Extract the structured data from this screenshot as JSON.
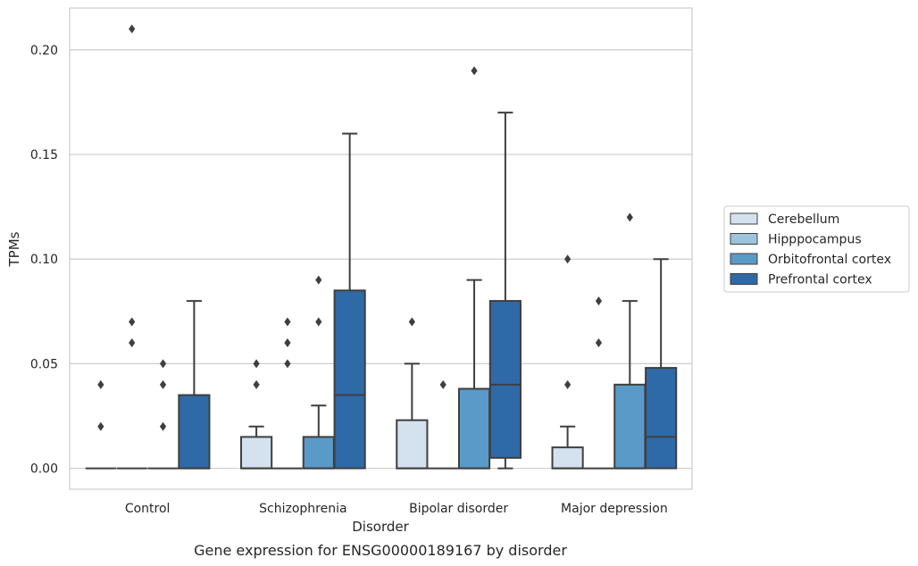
{
  "chart_data": {
    "type": "boxplot",
    "title": "",
    "caption": "Gene expression for ENSG00000189167 by disorder",
    "xlabel": "Disorder",
    "ylabel": "TPMs",
    "ylim": [
      -0.01,
      0.22
    ],
    "yticks": [
      0.0,
      0.05,
      0.1,
      0.15,
      0.2
    ],
    "ytick_labels": [
      "0.00",
      "0.05",
      "0.10",
      "0.15",
      "0.20"
    ],
    "grid": "horizontal",
    "legend_position": "center-right",
    "categories": [
      "Control",
      "Schizophrenia",
      "Bipolar disorder",
      "Major depression"
    ],
    "series": [
      {
        "name": "Cerebellum",
        "color": "#d4e2f0",
        "boxes": [
          {
            "q1": 0.0,
            "median": 0.0,
            "q3": 0.0,
            "whislo": 0.0,
            "whishi": 0.0,
            "fliers": [
              0.02,
              0.04
            ]
          },
          {
            "q1": 0.0,
            "median": 0.0,
            "q3": 0.015,
            "whislo": 0.0,
            "whishi": 0.02,
            "fliers": [
              0.04,
              0.05
            ]
          },
          {
            "q1": 0.0,
            "median": 0.0,
            "q3": 0.023,
            "whislo": 0.0,
            "whishi": 0.05,
            "fliers": [
              0.07
            ]
          },
          {
            "q1": 0.0,
            "median": 0.0,
            "q3": 0.01,
            "whislo": 0.0,
            "whishi": 0.02,
            "fliers": [
              0.04,
              0.1
            ]
          }
        ]
      },
      {
        "name": "Hipppocampus",
        "color": "#9dc4dd",
        "boxes": [
          {
            "q1": 0.0,
            "median": 0.0,
            "q3": 0.0,
            "whislo": 0.0,
            "whishi": 0.0,
            "fliers": [
              0.06,
              0.07,
              0.21
            ]
          },
          {
            "q1": 0.0,
            "median": 0.0,
            "q3": 0.0,
            "whislo": 0.0,
            "whishi": 0.0,
            "fliers": [
              0.05,
              0.06,
              0.07
            ]
          },
          {
            "q1": 0.0,
            "median": 0.0,
            "q3": 0.0,
            "whislo": 0.0,
            "whishi": 0.0,
            "fliers": [
              0.04
            ]
          },
          {
            "q1": 0.0,
            "median": 0.0,
            "q3": 0.0,
            "whislo": 0.0,
            "whishi": 0.0,
            "fliers": [
              0.06,
              0.08
            ]
          }
        ]
      },
      {
        "name": "Orbitofrontal cortex",
        "color": "#5a9ac8",
        "boxes": [
          {
            "q1": 0.0,
            "median": 0.0,
            "q3": 0.0,
            "whislo": 0.0,
            "whishi": 0.0,
            "fliers": [
              0.02,
              0.04,
              0.05
            ]
          },
          {
            "q1": 0.0,
            "median": 0.0,
            "q3": 0.015,
            "whislo": 0.0,
            "whishi": 0.03,
            "fliers": [
              0.07,
              0.09
            ]
          },
          {
            "q1": 0.0,
            "median": 0.0,
            "q3": 0.038,
            "whislo": 0.0,
            "whishi": 0.09,
            "fliers": [
              0.19
            ]
          },
          {
            "q1": 0.0,
            "median": 0.0,
            "q3": 0.04,
            "whislo": 0.0,
            "whishi": 0.08,
            "fliers": [
              0.12
            ]
          }
        ]
      },
      {
        "name": "Prefrontal cortex",
        "color": "#2e6aa8",
        "boxes": [
          {
            "q1": 0.0,
            "median": 0.0,
            "q3": 0.035,
            "whislo": 0.0,
            "whishi": 0.08,
            "fliers": []
          },
          {
            "q1": 0.0,
            "median": 0.035,
            "q3": 0.085,
            "whislo": 0.0,
            "whishi": 0.16,
            "fliers": []
          },
          {
            "q1": 0.005,
            "median": 0.04,
            "q3": 0.08,
            "whislo": 0.0,
            "whishi": 0.17,
            "fliers": []
          },
          {
            "q1": 0.0,
            "median": 0.015,
            "q3": 0.048,
            "whislo": 0.0,
            "whishi": 0.1,
            "fliers": []
          }
        ]
      }
    ]
  }
}
